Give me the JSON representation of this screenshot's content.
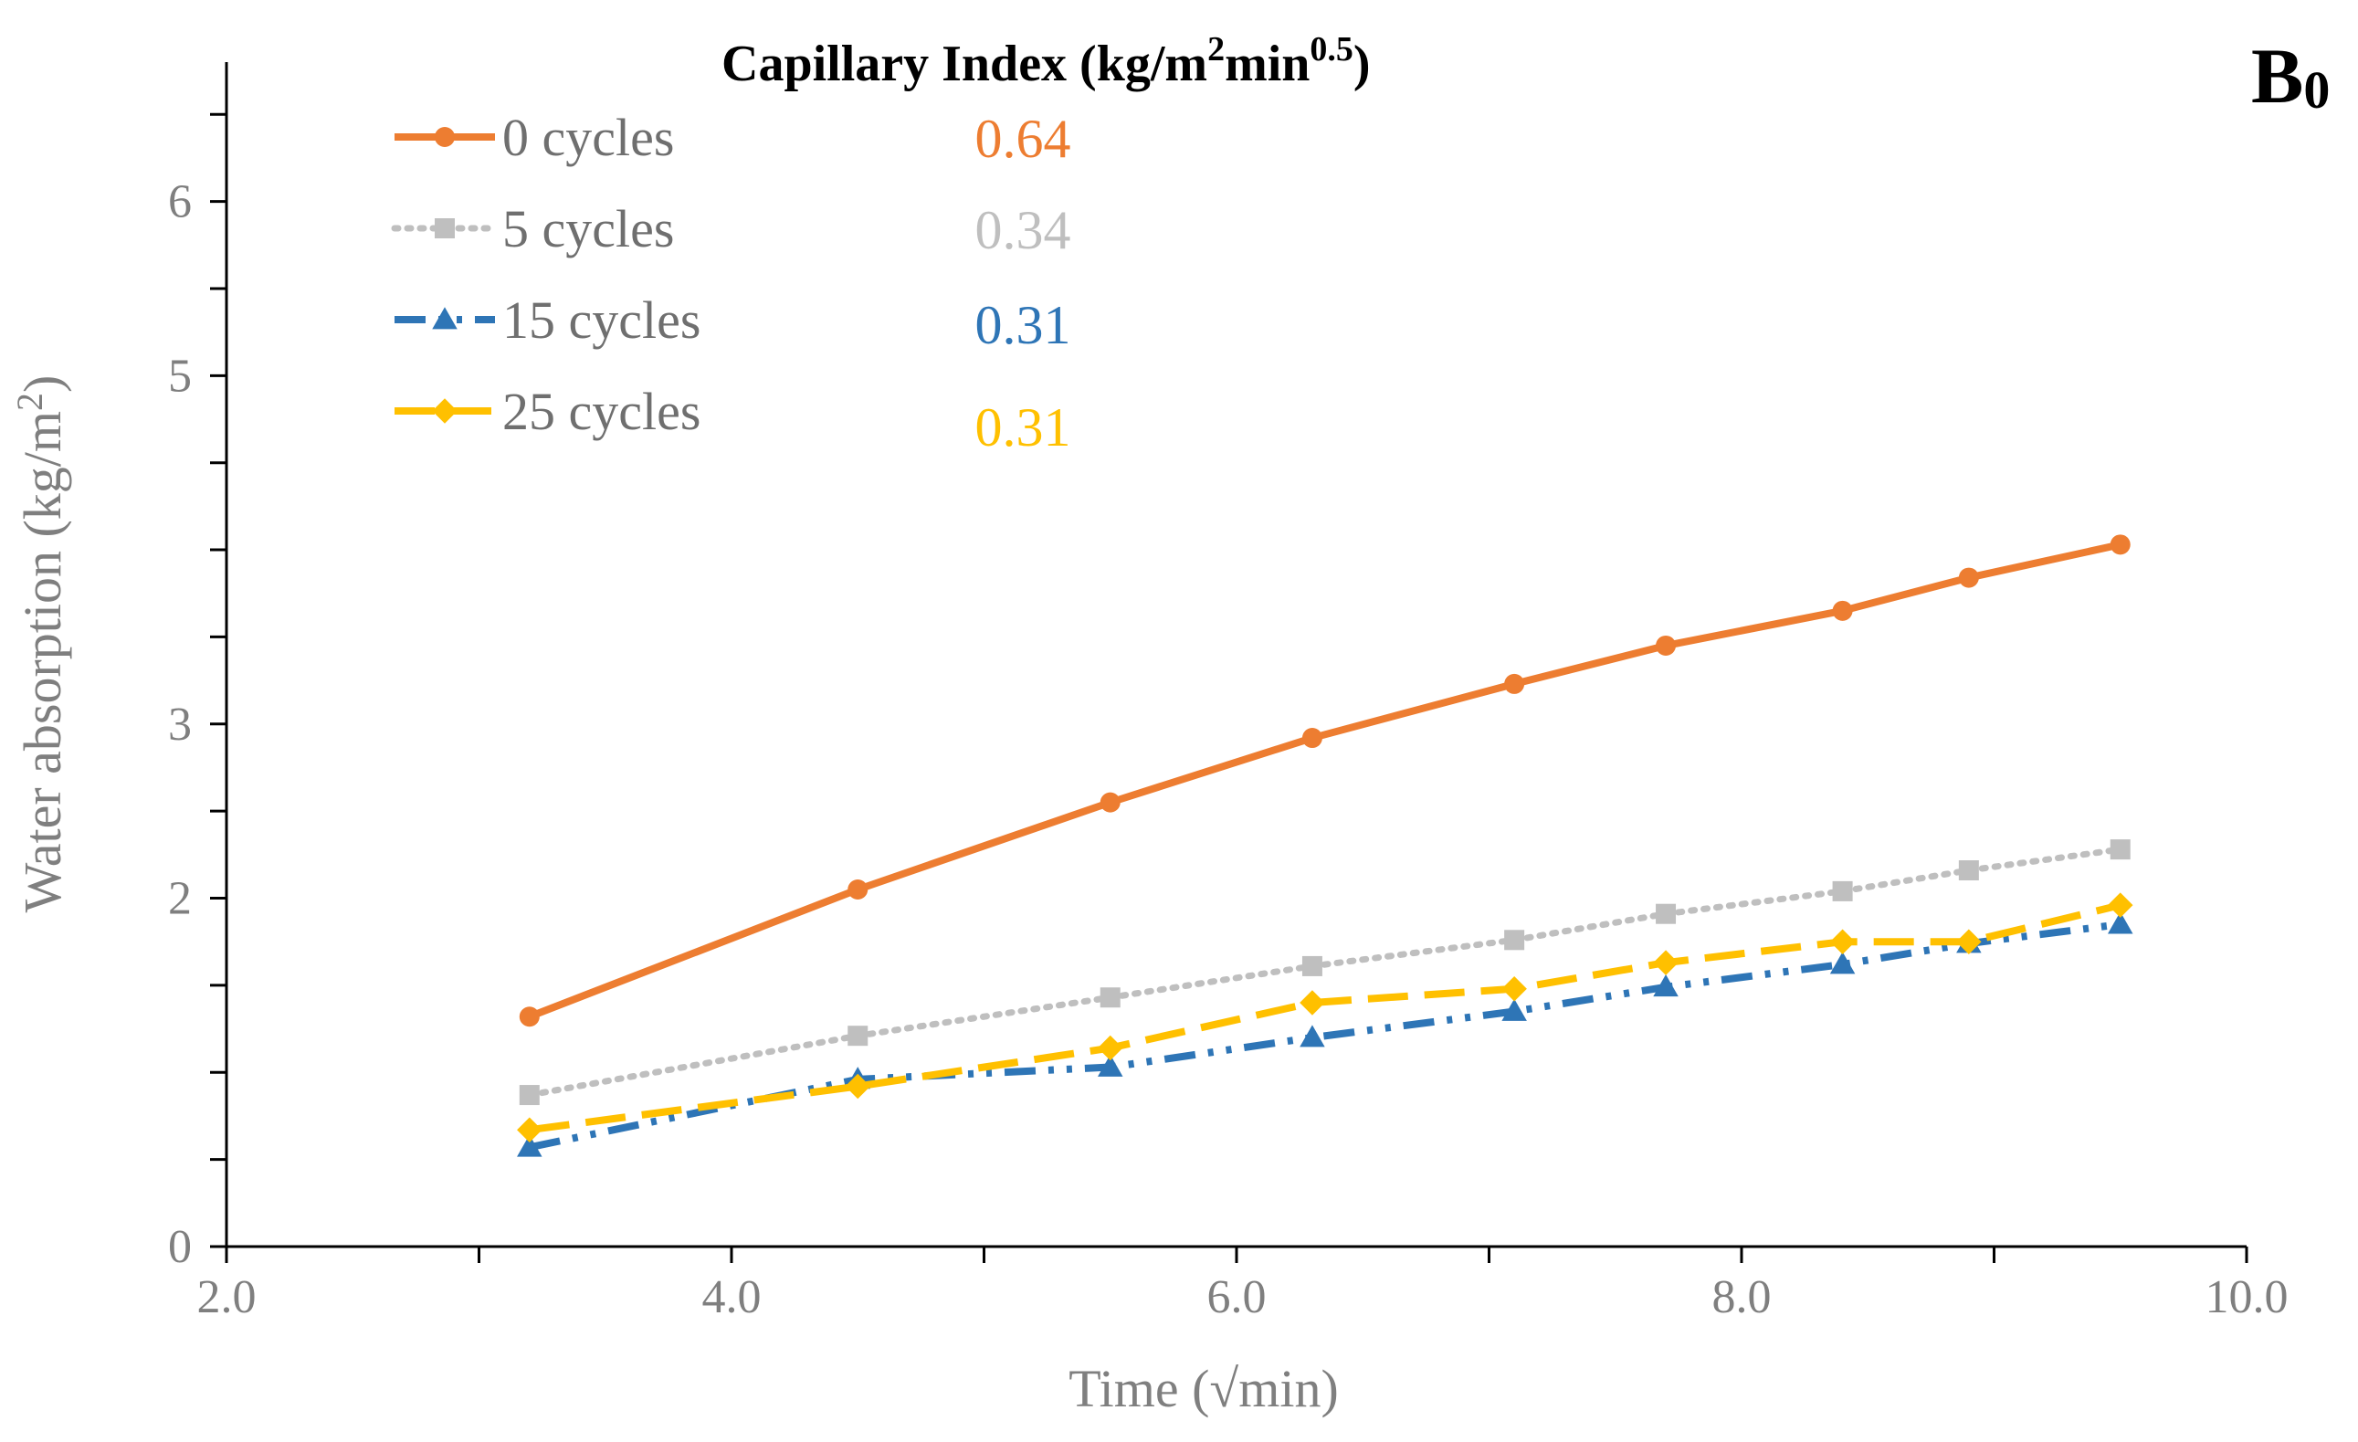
{
  "chart_data": {
    "type": "line",
    "panel_label": "B",
    "panel_label_sub": "0",
    "xlabel": "Time (√min)",
    "ylabel": "Water absorption (kg/m",
    "ylabel_sup": "2",
    "ylabel_close": ")",
    "xlim": [
      2.0,
      10.0
    ],
    "ylim": [
      0,
      6.8
    ],
    "x_ticks": [
      2.0,
      4.0,
      6.0,
      8.0,
      10.0
    ],
    "x_tick_labels": [
      "2.0",
      "4.0",
      "6.0",
      "8.0",
      "10.0"
    ],
    "y_ticks": [
      0,
      2,
      3,
      5,
      6
    ],
    "y_tick_labels": [
      "0",
      "2",
      "3",
      "5",
      "6"
    ],
    "legend_title": {
      "prefix": "Capillary Index (kg/m",
      "sup1": "2",
      "mid": "min",
      "sup2": "0.5",
      "suffix": ")"
    },
    "series": [
      {
        "name": "0 cycles",
        "capillary_index": "0.64",
        "color": "#ED7D31",
        "style": "solid",
        "marker": "circle",
        "x": [
          3.2,
          4.5,
          5.5,
          6.3,
          7.1,
          7.7,
          8.4,
          8.9,
          9.5
        ],
        "y": [
          1.32,
          2.05,
          2.55,
          2.92,
          3.23,
          3.45,
          3.65,
          3.84,
          4.03
        ]
      },
      {
        "name": "5 cycles",
        "capillary_index": "0.34",
        "color": "#BFBFBF",
        "style": "dotted",
        "marker": "square",
        "x": [
          3.2,
          4.5,
          5.5,
          6.3,
          7.1,
          7.7,
          8.4,
          8.9,
          9.5
        ],
        "y": [
          0.87,
          1.21,
          1.43,
          1.61,
          1.76,
          1.91,
          2.04,
          2.16,
          2.28
        ]
      },
      {
        "name": "15 cycles",
        "capillary_index": "0.31",
        "color": "#2E75B6",
        "style": "dashdot",
        "marker": "triangle",
        "x": [
          3.2,
          4.5,
          5.5,
          6.3,
          7.1,
          7.7,
          8.4,
          8.9,
          9.5
        ],
        "y": [
          0.57,
          0.96,
          1.03,
          1.2,
          1.35,
          1.49,
          1.62,
          1.74,
          1.85
        ]
      },
      {
        "name": "25 cycles",
        "capillary_index": "0.31",
        "color": "#FFC000",
        "style": "dashed",
        "marker": "diamond",
        "x": [
          3.2,
          4.5,
          5.5,
          6.3,
          7.1,
          7.7,
          8.4,
          8.9,
          9.5
        ],
        "y": [
          0.67,
          0.92,
          1.14,
          1.4,
          1.48,
          1.63,
          1.75,
          1.75,
          1.96
        ]
      }
    ]
  }
}
